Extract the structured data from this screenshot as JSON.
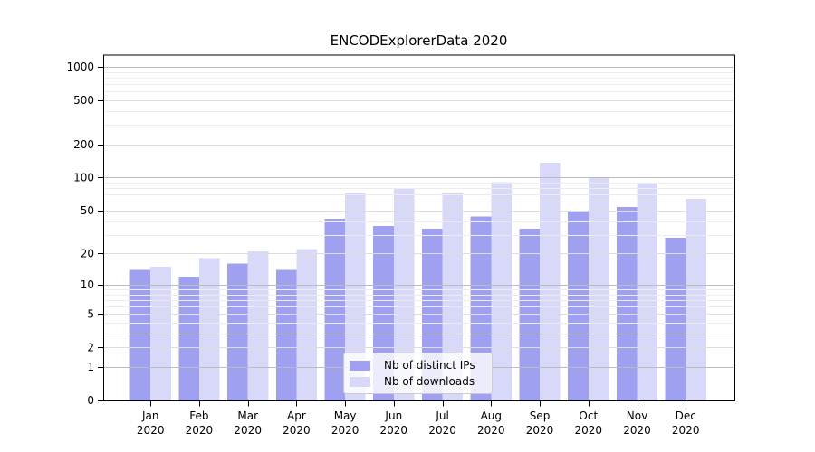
{
  "chart_data": {
    "type": "bar",
    "title": "ENCODExplorerData 2020",
    "categories": [
      "Jan 2020",
      "Feb 2020",
      "Mar 2020",
      "Apr 2020",
      "May 2020",
      "Jun 2020",
      "Jul 2020",
      "Aug 2020",
      "Sep 2020",
      "Oct 2020",
      "Nov 2020",
      "Dec 2020"
    ],
    "x_tick_month": [
      "Jan",
      "Feb",
      "Mar",
      "Apr",
      "May",
      "Jun",
      "Jul",
      "Aug",
      "Sep",
      "Oct",
      "Nov",
      "Dec"
    ],
    "x_tick_year": "2020",
    "series": [
      {
        "name": "Nb of distinct IPs",
        "color": "#a0a0f0",
        "values": [
          14,
          12,
          16,
          14,
          42,
          36,
          34,
          44,
          34,
          50,
          54,
          28
        ]
      },
      {
        "name": "Nb of downloads",
        "color": "#d8d8f8",
        "values": [
          15,
          18,
          21,
          22,
          73,
          80,
          72,
          91,
          137,
          99,
          89,
          64
        ]
      }
    ],
    "y_axis": {
      "scale": "log1p",
      "tick_labels": [
        0,
        1,
        2,
        5,
        10,
        20,
        50,
        100,
        200,
        500,
        1000
      ],
      "major_gridlines": [
        1,
        10,
        100,
        1000
      ],
      "labeled_gridlines": [
        2,
        5,
        20,
        50,
        200,
        500
      ],
      "minor_gridlines": [
        3,
        4,
        6,
        7,
        8,
        9,
        30,
        40,
        60,
        70,
        80,
        90,
        300,
        400,
        600,
        700,
        800,
        900
      ],
      "ylim": [
        0,
        1250
      ]
    },
    "legend": {
      "position": "lower center",
      "entries": [
        "Nb of distinct IPs",
        "Nb of downloads"
      ]
    },
    "grid": true
  },
  "colors": {
    "axis": "#000000",
    "grid_major": "#bbbbbb",
    "grid_labeled": "#dddddd",
    "grid_minor": "#ececec",
    "tick_text": "#000000",
    "background": "#ffffff"
  }
}
